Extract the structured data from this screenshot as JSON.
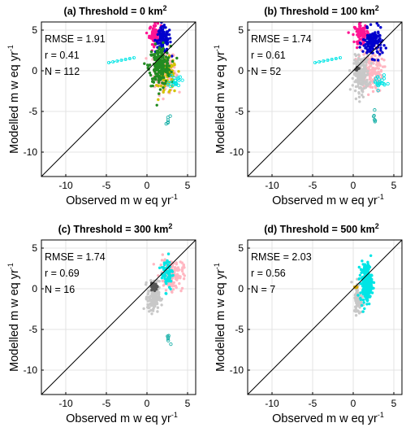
{
  "figure": {
    "x_unit_sup": "-1",
    "y_unit_sup": "-1",
    "title_sup": "2"
  },
  "chart_data": [
    {
      "type": "scatter",
      "title": "(a)  Threshold = 0 km",
      "xlabel": "Observed  m w eq yr",
      "ylabel": "Modelled  m w eq yr",
      "xlim": [
        -13,
        6
      ],
      "ylim": [
        -13,
        6
      ],
      "xticks": [
        -10,
        -5,
        0,
        5
      ],
      "yticks": [
        5,
        0,
        -5,
        -10
      ],
      "grid": true,
      "reference_line": "1:1",
      "stats": {
        "rmse": "RMSE = 1.91",
        "r": "r = 0.41",
        "n": "N = 112"
      },
      "clusters": [
        {
          "color": "#ffb6c1",
          "shape": "dot",
          "cx": 2.2,
          "cy": 0.0,
          "sx": 1.1,
          "sy": 2.2,
          "count": 200
        },
        {
          "color": "#ff1493",
          "shape": "dot",
          "cx": 1.0,
          "cy": 4.5,
          "sx": 0.6,
          "sy": 1.0,
          "count": 90
        },
        {
          "color": "#0000cd",
          "shape": "dot",
          "cx": 2.0,
          "cy": 3.8,
          "sx": 0.8,
          "sy": 1.3,
          "count": 110
        },
        {
          "color": "#d4c200",
          "shape": "dot",
          "cx": 2.6,
          "cy": -0.8,
          "sx": 0.9,
          "sy": 1.8,
          "count": 70
        },
        {
          "color": "#228b22",
          "shape": "dot",
          "cx": 1.6,
          "cy": 0.6,
          "sx": 1.1,
          "sy": 2.0,
          "count": 220
        },
        {
          "color": "#00e5e5",
          "shape": "ring",
          "cx": 3.5,
          "cy": -1.2,
          "sx": 0.6,
          "sy": 0.7,
          "count": 20
        },
        {
          "color": "#1fb2aa",
          "shape": "ring",
          "cx": 2.6,
          "cy": -5.9,
          "sx": 0.2,
          "sy": 0.7,
          "count": 6
        }
      ],
      "lines": [
        {
          "color": "#00e5e5",
          "x1": -4.7,
          "y1": 1.0,
          "x2": -1.6,
          "y2": 1.6
        }
      ]
    },
    {
      "type": "scatter",
      "title": "(b)  Threshold = 100 km",
      "xlabel": "Observed  m w eq yr",
      "ylabel": "Modelled  m w eq yr",
      "xlim": [
        -13,
        6
      ],
      "ylim": [
        -13,
        6
      ],
      "xticks": [
        -10,
        -5,
        0,
        5
      ],
      "yticks": [
        5,
        0,
        -5,
        -10
      ],
      "grid": true,
      "reference_line": "1:1",
      "stats": {
        "rmse": "RMSE = 1.74",
        "r": "r = 0.61",
        "n": "N = 52"
      },
      "clusters": [
        {
          "color": "#ffb6c1",
          "shape": "dot",
          "cx": 2.2,
          "cy": 0.0,
          "sx": 1.2,
          "sy": 2.2,
          "count": 160
        },
        {
          "color": "#c8c8c8",
          "shape": "dot",
          "cx": 1.0,
          "cy": -0.4,
          "sx": 0.8,
          "sy": 1.8,
          "count": 200
        },
        {
          "color": "#ff1493",
          "shape": "dot",
          "cx": 1.0,
          "cy": 4.6,
          "sx": 0.7,
          "sy": 1.0,
          "count": 90
        },
        {
          "color": "#0000cd",
          "shape": "dot",
          "cx": 2.4,
          "cy": 3.4,
          "sx": 1.0,
          "sy": 1.4,
          "count": 140
        },
        {
          "color": "#00e5e5",
          "shape": "ring",
          "cx": 3.2,
          "cy": -1.4,
          "sx": 0.6,
          "sy": 0.8,
          "count": 22
        },
        {
          "color": "#1fb2aa",
          "shape": "ring",
          "cx": 2.6,
          "cy": -5.9,
          "sx": 0.2,
          "sy": 0.7,
          "count": 6
        },
        {
          "color": "#4d4d4d",
          "shape": "dot",
          "cx": 0.5,
          "cy": 0.2,
          "sx": 0.25,
          "sy": 0.3,
          "count": 8
        }
      ],
      "lines": [
        {
          "color": "#00e5e5",
          "x1": -4.7,
          "y1": 1.0,
          "x2": -1.6,
          "y2": 1.6
        }
      ]
    },
    {
      "type": "scatter",
      "title": "(c)  Threshold = 300 km",
      "xlabel": "Observed  m w eq yr",
      "ylabel": "Modelled  m w eq yr",
      "xlim": [
        -13,
        6
      ],
      "ylim": [
        -13,
        6
      ],
      "xticks": [
        -10,
        -5,
        0,
        5
      ],
      "yticks": [
        5,
        0,
        -5,
        -10
      ],
      "grid": true,
      "reference_line": "1:1",
      "stats": {
        "rmse": "RMSE = 1.74",
        "r": "r = 0.69",
        "n": "N = 16"
      },
      "clusters": [
        {
          "color": "#ffb6c1",
          "shape": "dot",
          "cx": 3.0,
          "cy": 1.8,
          "sx": 1.2,
          "sy": 1.6,
          "count": 150
        },
        {
          "color": "#c8c8c8",
          "shape": "dot",
          "cx": 0.8,
          "cy": -1.0,
          "sx": 0.6,
          "sy": 1.6,
          "count": 160
        },
        {
          "color": "#00e5e5",
          "shape": "dot",
          "cx": 2.5,
          "cy": 2.0,
          "sx": 0.6,
          "sy": 1.8,
          "count": 70
        },
        {
          "color": "#555555",
          "shape": "dot",
          "cx": 0.9,
          "cy": 0.3,
          "sx": 0.3,
          "sy": 0.35,
          "count": 60
        },
        {
          "color": "#1fb2aa",
          "shape": "ring",
          "cx": 2.6,
          "cy": -5.9,
          "sx": 0.2,
          "sy": 0.7,
          "count": 6
        }
      ],
      "lines": []
    },
    {
      "type": "scatter",
      "title": "(d)  Threshold = 500 km",
      "xlabel": "Observed  m w eq yr",
      "ylabel": "Modelled  m w eq yr",
      "xlim": [
        -13,
        6
      ],
      "ylim": [
        -13,
        6
      ],
      "xticks": [
        -10,
        -5,
        0,
        5
      ],
      "yticks": [
        5,
        0,
        -5,
        -10
      ],
      "grid": true,
      "reference_line": "1:1",
      "stats": {
        "rmse": "RMSE = 2.03",
        "r": "r = 0.56",
        "n": "N = 7"
      },
      "clusters": [
        {
          "color": "#c8c8c8",
          "shape": "dot",
          "cx": 0.6,
          "cy": -1.2,
          "sx": 0.4,
          "sy": 1.6,
          "count": 90
        },
        {
          "color": "#00e5e5",
          "shape": "dot",
          "cx": 1.6,
          "cy": 0.8,
          "sx": 0.6,
          "sy": 2.0,
          "count": 220
        },
        {
          "color": "#d4a800",
          "shape": "dot",
          "cx": 0.3,
          "cy": 0.2,
          "sx": 0.15,
          "sy": 0.15,
          "count": 6
        }
      ],
      "lines": []
    }
  ]
}
